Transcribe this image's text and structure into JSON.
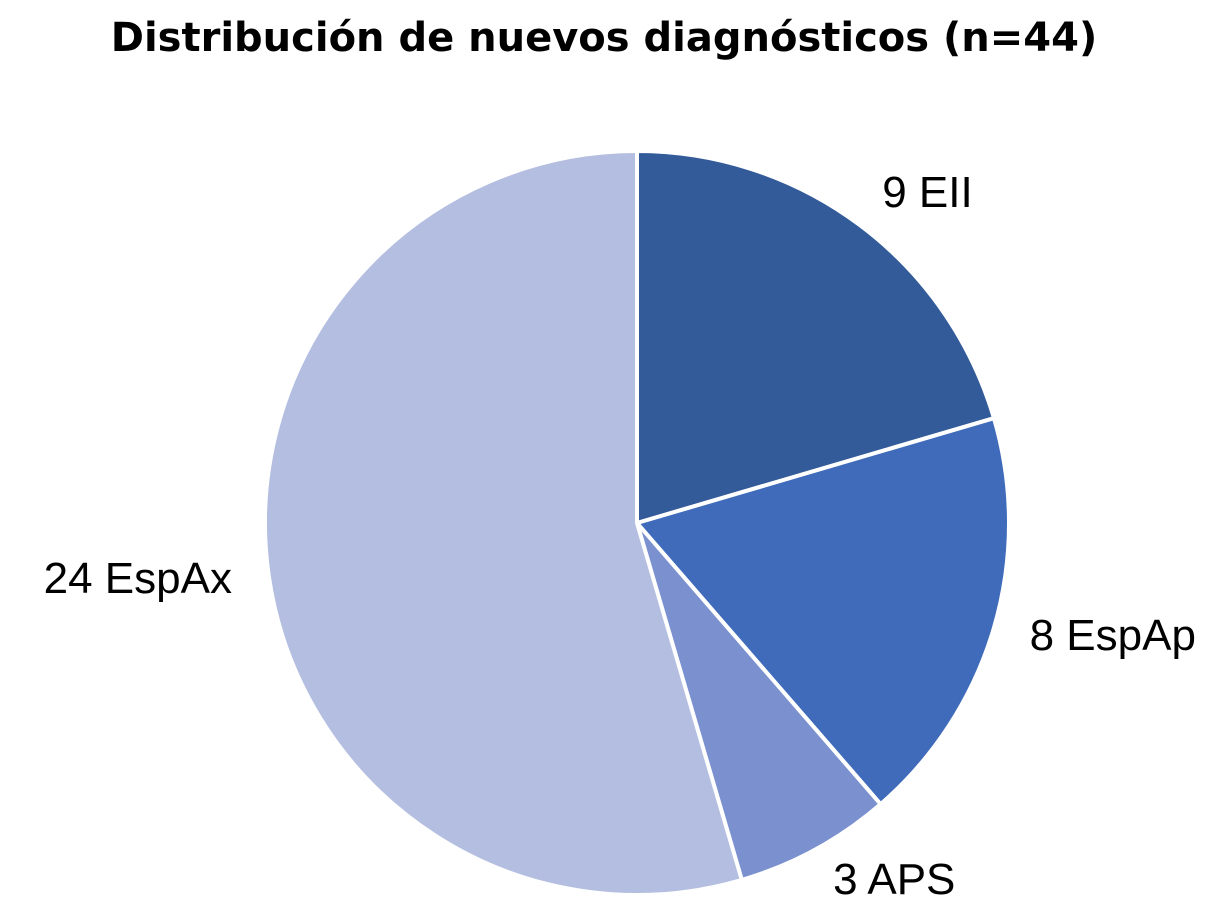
{
  "chart_data": {
    "type": "pie",
    "title": "Distribución de nuevos diagnósticos (n=44)",
    "values": [
      9,
      8,
      3,
      24
    ],
    "value_labels": [
      "9 EII",
      "8 EspAp",
      "3 APS",
      "24 EspAx"
    ],
    "colors": [
      "#335a99",
      "#3f6bba",
      "#7a90cf",
      "#b3bee0"
    ]
  }
}
